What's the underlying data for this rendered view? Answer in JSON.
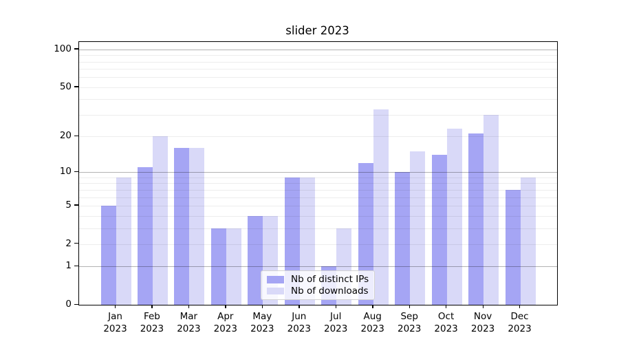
{
  "title": "slider 2023",
  "chart_data": {
    "type": "bar",
    "title": "slider 2023",
    "categories": [
      "Jan",
      "Feb",
      "Mar",
      "Apr",
      "May",
      "Jun",
      "Jul",
      "Aug",
      "Sep",
      "Oct",
      "Nov",
      "Dec"
    ],
    "category_sub_label": "2023",
    "series": [
      {
        "name": "Nb of distinct IPs",
        "color": "#a5a5f4",
        "values": [
          5,
          11,
          16,
          3,
          4,
          9,
          1,
          12,
          10,
          14,
          21,
          7
        ]
      },
      {
        "name": "Nb of downloads",
        "color": "#d9d9f8",
        "values": [
          9,
          20,
          16,
          3,
          4,
          9,
          3,
          33,
          15,
          23,
          30,
          9
        ]
      }
    ],
    "xlabel": "",
    "ylabel": "",
    "y_axis": {
      "scale": "log10(1+value)",
      "tick_labels": [
        "100",
        "50",
        "20",
        "10",
        "5",
        "2",
        "1",
        "0"
      ],
      "tick_values": [
        100,
        50,
        20,
        10,
        5,
        2,
        1,
        0
      ],
      "major_gridlines": [
        1,
        10,
        100
      ],
      "minor_gridlines": [
        2,
        3,
        4,
        5,
        6,
        7,
        8,
        9,
        20,
        30,
        40,
        50,
        60,
        70,
        80,
        90
      ],
      "top_value": 114
    },
    "grid": true,
    "legend": {
      "position": "lower center",
      "entries": [
        "Nb of distinct IPs",
        "Nb of downloads"
      ]
    }
  }
}
